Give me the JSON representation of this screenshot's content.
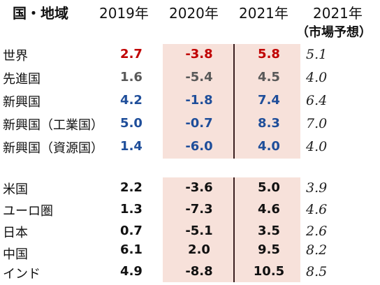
{
  "headers": {
    "region": "国・地域",
    "y2019": "2019年",
    "y2020": "2020年",
    "y2021": "2021年",
    "forecast_year": "2021年",
    "forecast_note": "（市場予想）"
  },
  "colors": {
    "shade": "#f7e1da",
    "red": "#c00000",
    "gray": "#595959",
    "blue": "#1f4e9a",
    "black": "#111111"
  },
  "group1": [
    {
      "region": "世界",
      "y2019": "2.7",
      "y2020": "-3.8",
      "y2021": "5.8",
      "forecast": "5.1",
      "color": "red"
    },
    {
      "region": "先進国",
      "y2019": "1.6",
      "y2020": "-5.4",
      "y2021": "4.5",
      "forecast": "4.0",
      "color": "gray"
    },
    {
      "region": "新興国",
      "y2019": "4.2",
      "y2020": "-1.8",
      "y2021": "7.4",
      "forecast": "6.4",
      "color": "blue"
    },
    {
      "region": "新興国（工業国）",
      "y2019": "5.0",
      "y2020": "-0.7",
      "y2021": "8.3",
      "forecast": "7.0",
      "color": "blue"
    },
    {
      "region": "新興国（資源国）",
      "y2019": "1.4",
      "y2020": "-6.0",
      "y2021": "4.0",
      "forecast": "4.0",
      "color": "blue"
    }
  ],
  "group2": [
    {
      "region": "米国",
      "y2019": "2.2",
      "y2020": "-3.6",
      "y2021": "5.0",
      "forecast": "3.9"
    },
    {
      "region": "ユーロ圏",
      "y2019": "1.3",
      "y2020": "-7.3",
      "y2021": "4.6",
      "forecast": "4.6"
    },
    {
      "region": "日本",
      "y2019": "0.7",
      "y2020": "-5.1",
      "y2021": "3.5",
      "forecast": "2.6"
    },
    {
      "region": "中国",
      "y2019": "6.1",
      "y2020": "2.0",
      "y2021": "9.5",
      "forecast": "8.2"
    },
    {
      "region": "インド",
      "y2019": "4.9",
      "y2020": "-8.8",
      "y2021": "10.5",
      "forecast": "8.5"
    }
  ]
}
